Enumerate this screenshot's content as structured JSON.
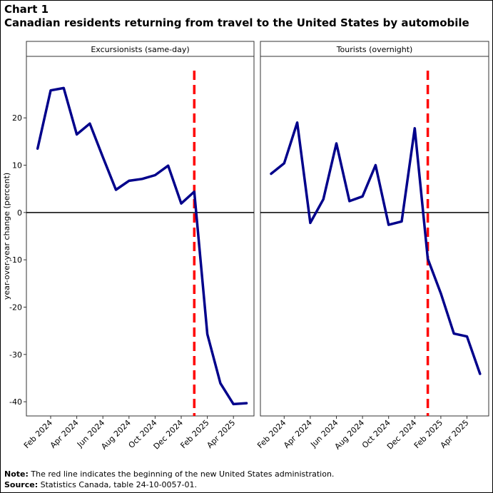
{
  "header": {
    "chart_number": "Chart 1",
    "title": "Canadian residents returning from travel to the United States by automobile"
  },
  "footer": {
    "note_label": "Note:",
    "note_text": "The red line indicates the beginning of the new United States administration.",
    "source_label": "Source:",
    "source_text": "Statistics Canada, table 24-10-0057-01."
  },
  "colors": {
    "series": "#00008b",
    "marker_line": "#ff0000",
    "zero_line": "#000000"
  },
  "chart_data": [
    {
      "type": "line",
      "panel_title": "Excursionists (same-day)",
      "ylabel": "year-over-year change (percent)",
      "ylim": [
        -43,
        33
      ],
      "yticks": [
        20,
        10,
        0,
        -10,
        -20,
        -30,
        -40
      ],
      "xticks": [
        "Feb 2024",
        "Apr 2024",
        "Jun 2024",
        "Aug 2024",
        "Oct 2024",
        "Dec 2024",
        "Feb 2025",
        "Apr 2025"
      ],
      "x": [
        "Jan 2024",
        "Feb 2024",
        "Mar 2024",
        "Apr 2024",
        "May 2024",
        "Jun 2024",
        "Jul 2024",
        "Aug 2024",
        "Sep 2024",
        "Oct 2024",
        "Nov 2024",
        "Dec 2024",
        "Jan 2025",
        "Feb 2025",
        "Mar 2025",
        "Apr 2025",
        "May 2025"
      ],
      "values": [
        13.5,
        25.8,
        26.3,
        16.5,
        18.8,
        11.7,
        4.8,
        6.7,
        7.1,
        7.9,
        9.9,
        1.9,
        4.4,
        -25.7,
        -36.1,
        -40.5,
        -40.3
      ],
      "vline_at": "Jan 2025",
      "hline_at": 0,
      "grid": false
    },
    {
      "type": "line",
      "panel_title": "Tourists (overnight)",
      "ylim": [
        -43,
        33
      ],
      "xticks": [
        "Feb 2024",
        "Apr 2024",
        "Jun 2024",
        "Aug 2024",
        "Oct 2024",
        "Dec 2024",
        "Feb 2025",
        "Apr 2025"
      ],
      "x": [
        "Jan 2024",
        "Feb 2024",
        "Mar 2024",
        "Apr 2024",
        "May 2024",
        "Jun 2024",
        "Jul 2024",
        "Aug 2024",
        "Sep 2024",
        "Oct 2024",
        "Nov 2024",
        "Dec 2024",
        "Jan 2025",
        "Feb 2025",
        "Mar 2025",
        "Apr 2025",
        "May 2025"
      ],
      "values": [
        8.2,
        10.4,
        19.0,
        -2.2,
        2.8,
        14.6,
        2.4,
        3.4,
        10.0,
        -2.6,
        -1.9,
        17.8,
        -9.8,
        -17.1,
        -25.6,
        -26.2,
        -34.1
      ],
      "vline_at": "Jan 2025",
      "hline_at": 0,
      "grid": false
    }
  ]
}
